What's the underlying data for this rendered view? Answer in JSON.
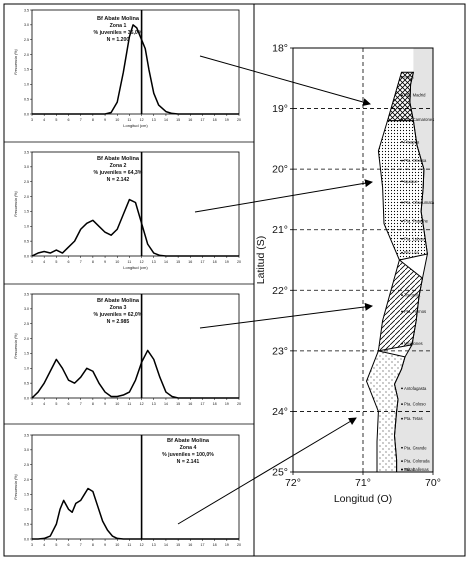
{
  "chart_data": [
    {
      "type": "line",
      "id": "zone-1",
      "annotation": [
        "Bf Abate Molina",
        "Zona 1",
        "% juveniles = 36,0%",
        "N = 1.200"
      ],
      "xlabel": "Longitud (cm)",
      "ylabel": "Frecuencia (%)",
      "xlim": [
        3,
        20
      ],
      "ylim": [
        0,
        3.5
      ],
      "x_ticks": [
        "3",
        "4",
        "5",
        "6",
        "7",
        "8",
        "9",
        "10",
        "11",
        "12",
        "13",
        "14",
        "15",
        "16",
        "17",
        "18",
        "19",
        "20"
      ],
      "y_ticks": [
        "0.0",
        "0.5",
        "1.0",
        "1.5",
        "2.0",
        "2.5",
        "3.0",
        "3.5"
      ],
      "reference_line_x": 12,
      "x": [
        3,
        4,
        5,
        6,
        7,
        8,
        9,
        9.5,
        10,
        10.5,
        11,
        11.3,
        11.6,
        12,
        12.3,
        12.6,
        13,
        13.4,
        14,
        14.5,
        15,
        16,
        17,
        18,
        19,
        20
      ],
      "y": [
        0,
        0,
        0,
        0,
        0,
        0,
        0,
        0.05,
        0.4,
        1.4,
        2.6,
        3.0,
        2.9,
        2.5,
        2.2,
        1.5,
        0.7,
        0.3,
        0.08,
        0.02,
        0,
        0,
        0,
        0,
        0,
        0
      ]
    },
    {
      "type": "line",
      "id": "zone-2",
      "annotation": [
        "Bf Abate Molina",
        "Zona 2",
        "% juveniles = 64,3%",
        "N = 2.142"
      ],
      "xlabel": "Longitud (cm)",
      "ylabel": "Frecuencia (%)",
      "xlim": [
        3,
        20
      ],
      "ylim": [
        0,
        3.5
      ],
      "x_ticks": [
        "3",
        "4",
        "5",
        "6",
        "7",
        "8",
        "9",
        "10",
        "11",
        "12",
        "13",
        "14",
        "15",
        "16",
        "17",
        "18",
        "19",
        "20"
      ],
      "y_ticks": [
        "0.0",
        "0.5",
        "1.0",
        "1.5",
        "2.0",
        "2.5",
        "3.0",
        "3.5"
      ],
      "reference_line_x": 12,
      "x": [
        3,
        3.5,
        4,
        4.5,
        5,
        5.5,
        6,
        6.5,
        7,
        7.5,
        8,
        8.5,
        9,
        9.5,
        10,
        10.5,
        11,
        11.5,
        12,
        12.5,
        13,
        13.5,
        14,
        15,
        16,
        17,
        18,
        19,
        20
      ],
      "y": [
        0,
        0.1,
        0.15,
        0.1,
        0.2,
        0.1,
        0.3,
        0.5,
        0.9,
        1.1,
        1.2,
        1.0,
        0.8,
        0.7,
        0.9,
        1.4,
        1.9,
        1.8,
        1.1,
        0.4,
        0.1,
        0.02,
        0,
        0,
        0,
        0,
        0,
        0,
        0
      ]
    },
    {
      "type": "line",
      "id": "zone-3",
      "annotation": [
        "Bf Abate Molina",
        "Zona 3",
        "% juveniles = 62,0%",
        "N = 2.985"
      ],
      "xlabel": "",
      "ylabel": "Frecuencia (%)",
      "xlim": [
        3,
        20
      ],
      "ylim": [
        0,
        3.5
      ],
      "x_ticks": [
        "3",
        "4",
        "5",
        "6",
        "7",
        "8",
        "9",
        "10",
        "11",
        "12",
        "13",
        "14",
        "15",
        "16",
        "17",
        "18",
        "19",
        "20"
      ],
      "y_ticks": [
        "0.0",
        "0.5",
        "1.0",
        "1.5",
        "2.0",
        "2.5",
        "3.0",
        "3.5"
      ],
      "reference_line_x": 12,
      "x": [
        3,
        3.5,
        4,
        4.5,
        5,
        5.5,
        6,
        6.5,
        7,
        7.5,
        8,
        8.5,
        9,
        9.5,
        10,
        10.5,
        11,
        11.5,
        12,
        12.5,
        13,
        13.5,
        14,
        14.5,
        15,
        16,
        17,
        18,
        19,
        20
      ],
      "y": [
        0,
        0.2,
        0.5,
        0.9,
        1.3,
        1.0,
        0.6,
        0.5,
        0.7,
        1.0,
        0.9,
        0.5,
        0.2,
        0.05,
        0.05,
        0.1,
        0.2,
        0.6,
        1.2,
        1.6,
        1.3,
        0.7,
        0.2,
        0.05,
        0,
        0,
        0,
        0,
        0,
        0
      ]
    },
    {
      "type": "line",
      "id": "zone-4",
      "annotation": [
        "Bf Abate Molina",
        "Zona 4",
        "% juveniles = 100,0%",
        "N = 2.141"
      ],
      "xlabel": "",
      "ylabel": "Frecuencia (%)",
      "xlim": [
        3,
        20
      ],
      "ylim": [
        0,
        3.5
      ],
      "x_ticks": [
        "3",
        "4",
        "5",
        "6",
        "7",
        "8",
        "9",
        "10",
        "11",
        "12",
        "13",
        "14",
        "15",
        "16",
        "17",
        "18",
        "19",
        "20"
      ],
      "y_ticks": [
        "0.0",
        "0.5",
        "1.0",
        "1.5",
        "2.0",
        "2.5",
        "3.0",
        "3.5"
      ],
      "reference_line_x": 12,
      "x": [
        3,
        3.5,
        4,
        4.5,
        5,
        5.3,
        5.6,
        6,
        6.3,
        6.6,
        7,
        7.3,
        7.6,
        8,
        8.4,
        8.8,
        9.2,
        9.6,
        10,
        10.5,
        11,
        12,
        13,
        14,
        15,
        16,
        17,
        18,
        19,
        20
      ],
      "y": [
        0,
        0,
        0.02,
        0.1,
        0.5,
        1.0,
        1.3,
        1.0,
        0.9,
        1.2,
        1.3,
        1.5,
        1.7,
        1.6,
        1.1,
        0.6,
        0.3,
        0.1,
        0.02,
        0,
        0,
        0,
        0,
        0,
        0,
        0,
        0,
        0,
        0,
        0
      ]
    }
  ],
  "map": {
    "xlabel": "Longitud (O)",
    "ylabel": "Latitud (S)",
    "lat_ticks": [
      "18°",
      "19°",
      "20°",
      "21°",
      "22°",
      "23°",
      "24°",
      "25°"
    ],
    "lon_ticks": [
      "72°",
      "71°",
      "70°"
    ],
    "zones": [
      {
        "name": "Zona 1",
        "pattern": "crosshatch",
        "lat_range": [
          18.4,
          19.2
        ]
      },
      {
        "name": "Zona 2",
        "pattern": "dots",
        "lat_range": [
          19.2,
          21.5
        ]
      },
      {
        "name": "Zona 3",
        "pattern": "diagonal",
        "lat_range": [
          21.5,
          23.0
        ]
      },
      {
        "name": "Zona 4",
        "pattern": "sparse-dots",
        "lat_range": [
          23.0,
          25.0
        ]
      }
    ],
    "place_labels": [
      "Arica",
      "Pta. Madrid",
      "Pta. Camarones",
      "Pisagua",
      "Pta. Gruesa",
      "Iquique",
      "Pta. Chucumata",
      "Pta. Patache",
      "Pta. Lobos",
      "Río Loa",
      "Tocopilla",
      "Pta. Hornos",
      "Mejillones",
      "Antofagasta",
      "Pta. Coloso",
      "Pta. Tetas",
      "Pta. Grande",
      "Pta. Colorada",
      "Taltal",
      "Pta. Ballenas"
    ]
  }
}
